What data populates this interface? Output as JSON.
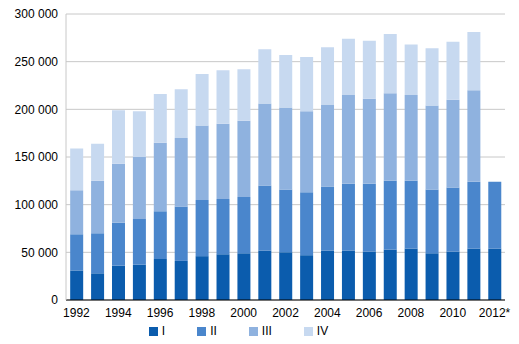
{
  "chart_data": {
    "type": "bar",
    "stacked": true,
    "grid": true,
    "legend": "bottom",
    "categories": [
      "1992",
      null,
      "1994",
      null,
      "1996",
      null,
      "1998",
      null,
      "2000",
      null,
      "2002",
      null,
      "2004",
      null,
      "2006",
      null,
      "2008",
      null,
      "2010",
      null,
      "2012*"
    ],
    "ylim": [
      0,
      300000
    ],
    "yticks": [
      0,
      {
        "value": 50000,
        "label": "50 000"
      },
      {
        "value": 100000,
        "label": "100 000"
      },
      {
        "value": 150000,
        "label": "150 000"
      },
      {
        "value": 200000,
        "label": "200 000"
      },
      {
        "value": 250000,
        "label": "250 000"
      },
      {
        "value": 300000,
        "label": "300 000"
      }
    ],
    "series": [
      {
        "name": "I",
        "color": "#0b5cad",
        "values": [
          31000,
          28000,
          36000,
          37000,
          43000,
          41000,
          46000,
          48000,
          49000,
          52000,
          50000,
          47000,
          52000,
          52000,
          51000,
          53000,
          54000,
          49000,
          51000,
          54000,
          54000
        ]
      },
      {
        "name": "II",
        "color": "#4a86cc",
        "values": [
          38000,
          42000,
          45000,
          48000,
          50000,
          57000,
          59000,
          58000,
          59000,
          68000,
          66000,
          66000,
          67000,
          70000,
          71000,
          72000,
          71000,
          67000,
          67000,
          70000,
          70000
        ]
      },
      {
        "name": "III",
        "color": "#8fb2df",
        "values": [
          46000,
          55000,
          62000,
          65000,
          72000,
          72000,
          78000,
          79000,
          80000,
          86000,
          86000,
          85000,
          86000,
          93000,
          89000,
          92000,
          90000,
          88000,
          92000,
          96000,
          null
        ]
      },
      {
        "name": "IV",
        "color": "#c7d9f0",
        "values": [
          44000,
          39000,
          56000,
          48000,
          51000,
          51000,
          54000,
          56000,
          54000,
          57000,
          55000,
          57000,
          60000,
          59000,
          61000,
          62000,
          53000,
          60000,
          61000,
          61000,
          null
        ]
      }
    ]
  }
}
